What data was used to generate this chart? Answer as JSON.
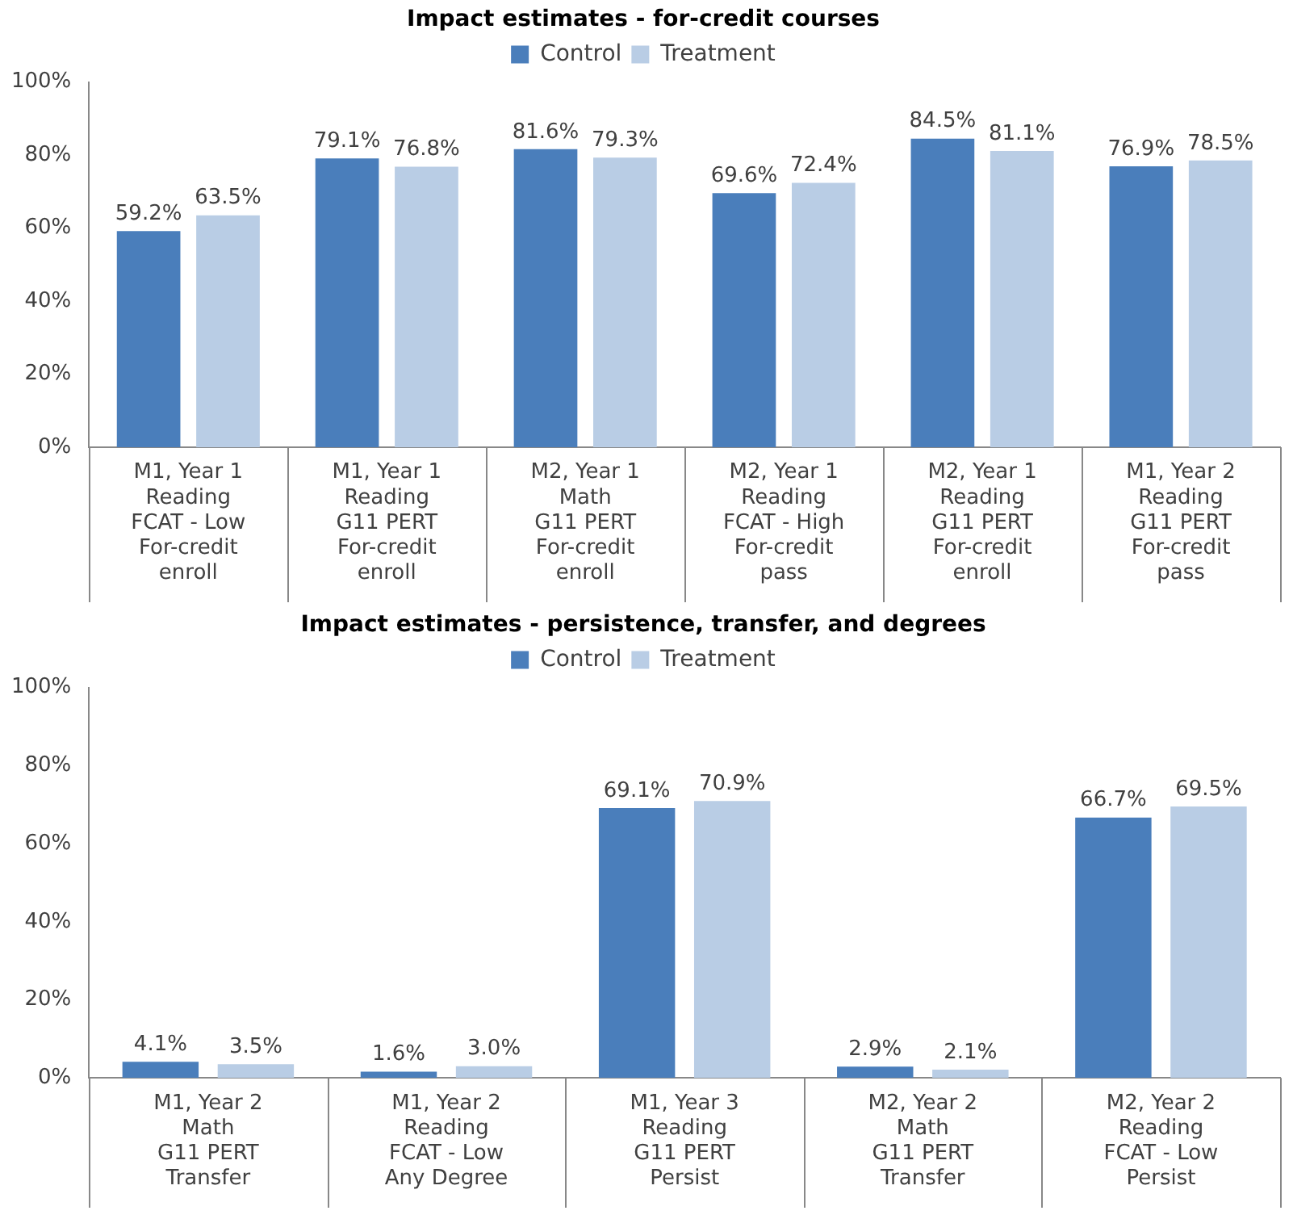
{
  "chart_data": [
    {
      "type": "bar",
      "title": "Impact estimates - for-credit courses",
      "categories": [
        "M1, Year 1\nReading\nFCAT - Low\nFor-credit\nenroll",
        "M1, Year 1\nReading\nG11 PERT\nFor-credit\nenroll",
        "M2, Year 1\nMath\nG11 PERT\nFor-credit\nenroll",
        "M2, Year 1\nReading\nFCAT - High\nFor-credit\npass",
        "M2, Year 1\nReading\nG11 PERT\nFor-credit\nenroll",
        "M1, Year 2\nReading\nG11 PERT\nFor-credit\npass"
      ],
      "series": [
        {
          "name": "Control",
          "color": "#4a7ebb",
          "values": [
            59.2,
            79.1,
            81.6,
            69.6,
            84.5,
            76.9
          ],
          "value_labels": [
            "59.2%",
            "79.1%",
            "81.6%",
            "69.6%",
            "84.5%",
            "76.9%"
          ]
        },
        {
          "name": "Treatment",
          "color": "#b9cde5",
          "values": [
            63.5,
            76.8,
            79.3,
            72.4,
            81.1,
            78.5
          ],
          "value_labels": [
            "63.5%",
            "76.8%",
            "79.3%",
            "72.4%",
            "81.1%",
            "78.5%"
          ]
        }
      ],
      "ylim": [
        0,
        100
      ],
      "yticks": [
        {
          "value": 0,
          "label": "0%"
        },
        {
          "value": 20,
          "label": "20%"
        },
        {
          "value": 40,
          "label": "40%"
        },
        {
          "value": 60,
          "label": "60%"
        },
        {
          "value": 80,
          "label": "80%"
        },
        {
          "value": 100,
          "label": "100%"
        }
      ],
      "grid": false,
      "legend": "top"
    },
    {
      "type": "bar",
      "title": "Impact estimates - persistence, transfer, and degrees",
      "categories": [
        "M1, Year 2\nMath\nG11 PERT\nTransfer",
        "M1, Year 2\nReading\nFCAT - Low\nAny Degree",
        "M1, Year 3\nReading\nG11 PERT\nPersist",
        "M2, Year 2\nMath\nG11 PERT\nTransfer",
        "M2, Year 2\nReading\nFCAT - Low\nPersist"
      ],
      "series": [
        {
          "name": "Control",
          "color": "#4a7ebb",
          "values": [
            4.1,
            1.6,
            69.1,
            2.9,
            66.7
          ],
          "value_labels": [
            "4.1%",
            "1.6%",
            "69.1%",
            "2.9%",
            "66.7%"
          ]
        },
        {
          "name": "Treatment",
          "color": "#b9cde5",
          "values": [
            3.5,
            3.0,
            70.9,
            2.1,
            69.5
          ],
          "value_labels": [
            "3.5%",
            "3.0%",
            "70.9%",
            "2.1%",
            "69.5%"
          ]
        }
      ],
      "ylim": [
        0,
        100
      ],
      "yticks": [
        {
          "value": 0,
          "label": "0%"
        },
        {
          "value": 20,
          "label": "20%"
        },
        {
          "value": 40,
          "label": "40%"
        },
        {
          "value": 60,
          "label": "60%"
        },
        {
          "value": 80,
          "label": "80%"
        },
        {
          "value": 100,
          "label": "100%"
        }
      ],
      "grid": false,
      "legend": "top"
    }
  ]
}
